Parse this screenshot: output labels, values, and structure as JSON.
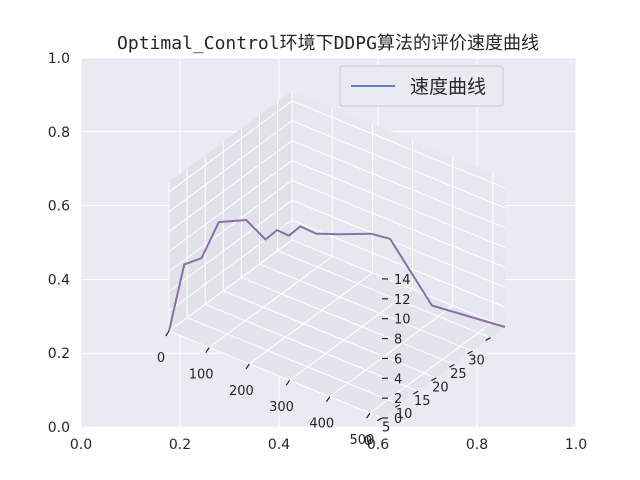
{
  "title": "Optimal_Control环境下DDPG算法的评价速度曲线",
  "colors": {
    "axes_background": "#eaeaf2",
    "grid": "#ffffff",
    "pane_left": "#e1e1ea",
    "pane_right": "#e7e7ef",
    "pane_floor": "#e4e4ed",
    "series_line": "#8a6fab",
    "legend_line": "#4c72b0",
    "text": "#262626"
  },
  "outer_axes": {
    "xlim": [
      0,
      1
    ],
    "ylim": [
      0,
      1
    ],
    "xticks": [
      "0.0",
      "0.2",
      "0.4",
      "0.6",
      "0.8",
      "1.0"
    ],
    "yticks": [
      "0.0",
      "0.2",
      "0.4",
      "0.6",
      "0.8",
      "1.0"
    ]
  },
  "chart_data": {
    "type": "line",
    "projection": "3d",
    "title": "Optimal_Control环境下DDPG算法的评价速度曲线",
    "xlabel": "",
    "ylabel": "",
    "zlabel": "",
    "xlim": [
      0,
      530
    ],
    "ylim": [
      0,
      34
    ],
    "zlim": [
      0,
      15
    ],
    "xticks": [
      "0",
      "100",
      "200",
      "300",
      "400",
      "500"
    ],
    "yticks": [
      "0",
      "5",
      "10",
      "15",
      "20",
      "25",
      "30"
    ],
    "zticks": [
      "0",
      "2",
      "4",
      "6",
      "8",
      "10",
      "12",
      "14"
    ],
    "grid": true,
    "legend_position": "top-right",
    "series": [
      {
        "name": "速度曲线",
        "x": [
          0,
          20,
          45,
          70,
          120,
          150,
          170,
          190,
          210,
          240,
          290,
          350,
          370,
          420,
          530
        ],
        "y": [
          0,
          2,
          4,
          6,
          8,
          10,
          11,
          12,
          13,
          14,
          15,
          17,
          20,
          26,
          34
        ],
        "z": [
          0,
          6.5,
          7,
          10.5,
          11,
          9,
          10,
          9.5,
          10.5,
          10,
          10.5,
          11,
          10,
          2.5,
          0
        ]
      }
    ]
  }
}
